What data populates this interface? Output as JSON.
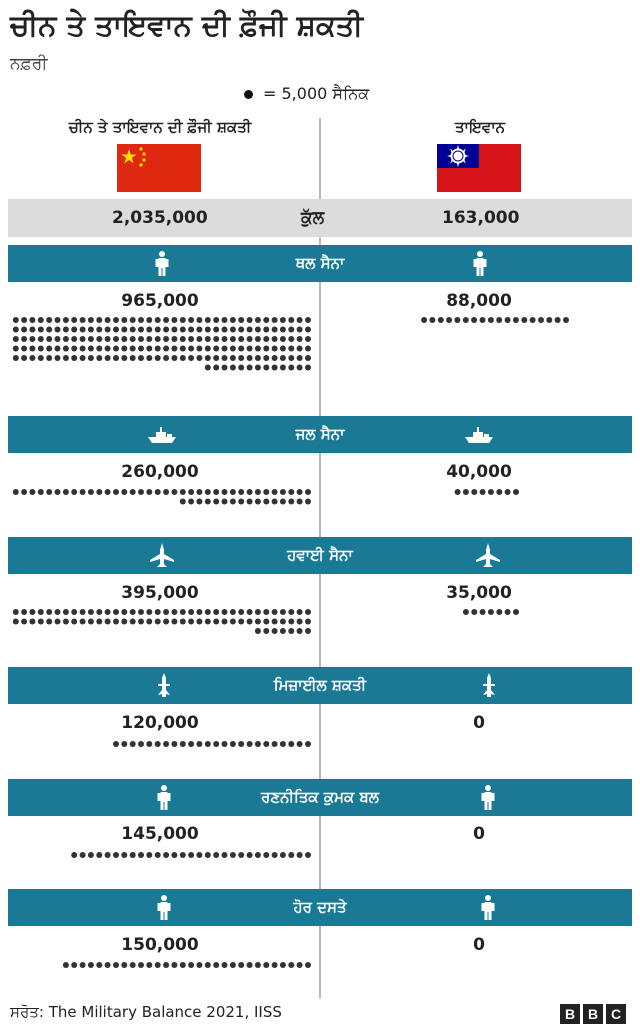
{
  "title": "ਚੀਨ ਤੇ ਤਾਇਵਾਨ ਦੀ ਫ਼ੌਜੀ ਸ਼ਕਤੀ",
  "subtitle": "ਨਫ਼ਰੀ",
  "legend": {
    "text": "= 5,000 ਸੈਨਿਕ",
    "unit": 5000
  },
  "columns": {
    "china_header": "ਚੀਨ ਤੇ ਤਾਇਵਾਨ ਦੀ ਫ਼ੌਜੀ ਸ਼ਕਤੀ",
    "taiwan_header": "ਤਾਇਵਾਨ"
  },
  "total": {
    "china": "2,035,000",
    "label": "ਕੁੱਲ",
    "taiwan": "163,000"
  },
  "source": "ਸਰੋਤ: The Military Balance 2021, IISS",
  "brand": [
    "B",
    "B",
    "C"
  ],
  "colors": {
    "band": "#1a7a96",
    "dot": "#333333",
    "total_bg": "#dcdcdc",
    "china_flag": "#de2910",
    "china_star": "#ffde00",
    "taiwan_flag": "#d7141a",
    "taiwan_canton": "#000095"
  },
  "chart_data": {
    "type": "pictogram",
    "unit": 5000,
    "series": [
      {
        "name": "ਚੀਨ ਤੇ ਤਾਇਵਾਨ ਦੀ ਫ਼ੌਜੀ ਸ਼ਕਤੀ",
        "values": [
          965000,
          260000,
          395000,
          120000,
          145000,
          150000
        ]
      },
      {
        "name": "ਤਾਇਵਾਨ",
        "values": [
          88000,
          40000,
          35000,
          0,
          0,
          0
        ]
      }
    ],
    "categories": [
      "ਥਲ ਸੈਨਾ",
      "ਜਲ ਸੈਨਾ",
      "ਹਵਾਈ ਸੈਨਾ",
      "ਮਿਜ਼ਾਈਲ ਸ਼ਕਤੀ",
      "ਰਣਨੀਤਿਕ ਕੁਮਕ ਬਲ",
      "ਹੋਰ ਦਸਤੇ"
    ],
    "icons": [
      "soldier-icon",
      "ship-icon",
      "jet-icon",
      "missile-icon",
      "soldier-icon",
      "soldier-icon"
    ],
    "categories_display": [
      {
        "label": "ਥਲ ਸੈਨਾ",
        "china": "965,000",
        "taiwan": "88,000"
      },
      {
        "label": "ਜਲ ਸੈਨਾ",
        "china": "260,000",
        "taiwan": "40,000"
      },
      {
        "label": "ਹਵਾਈ ਸੈਨਾ",
        "china": "395,000",
        "taiwan": "35,000"
      },
      {
        "label": "ਮਿਜ਼ਾਈਲ ਸ਼ਕਤੀ",
        "china": "120,000",
        "taiwan": "0"
      },
      {
        "label": "ਰਣਨੀਤਿਕ ਕੁਮਕ ਬਲ",
        "china": "145,000",
        "taiwan": "0"
      },
      {
        "label": "ਹੋਰ ਦਸਤੇ",
        "china": "150,000",
        "taiwan": "0"
      }
    ]
  }
}
